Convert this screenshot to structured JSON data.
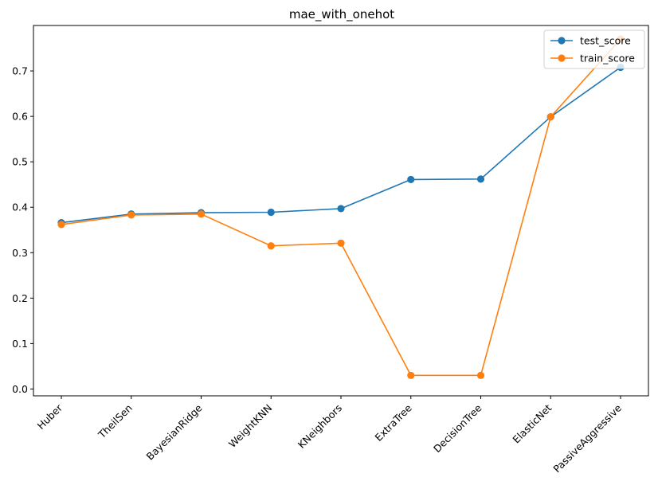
{
  "chart_data": {
    "type": "line",
    "title": "mae_with_onehot",
    "xlabel": "",
    "ylabel": "",
    "categories": [
      "Huber",
      "TheilSen",
      "BayesianRidge",
      "WeightKNN",
      "KNeighbors",
      "ExtraTree",
      "DecisionTree",
      "ElasticNet",
      "PassiveAggressive"
    ],
    "ylim": [
      -0.015,
      0.8
    ],
    "yticks": [
      0.0,
      0.1,
      0.2,
      0.3,
      0.4,
      0.5,
      0.6,
      0.7
    ],
    "ytick_labels": [
      "0.0",
      "0.1",
      "0.2",
      "0.3",
      "0.4",
      "0.5",
      "0.6",
      "0.7"
    ],
    "grid": false,
    "legend_position": "top-right",
    "series": [
      {
        "name": "test_score",
        "color": "#1f77b4",
        "marker": "circle",
        "values": [
          0.366,
          0.385,
          0.388,
          0.389,
          0.397,
          0.461,
          0.462,
          0.599,
          0.708
        ]
      },
      {
        "name": "train_score",
        "color": "#ff7f0e",
        "marker": "circle",
        "values": [
          0.362,
          0.383,
          0.385,
          0.315,
          0.321,
          0.03,
          0.03,
          0.599,
          0.77
        ]
      }
    ]
  }
}
